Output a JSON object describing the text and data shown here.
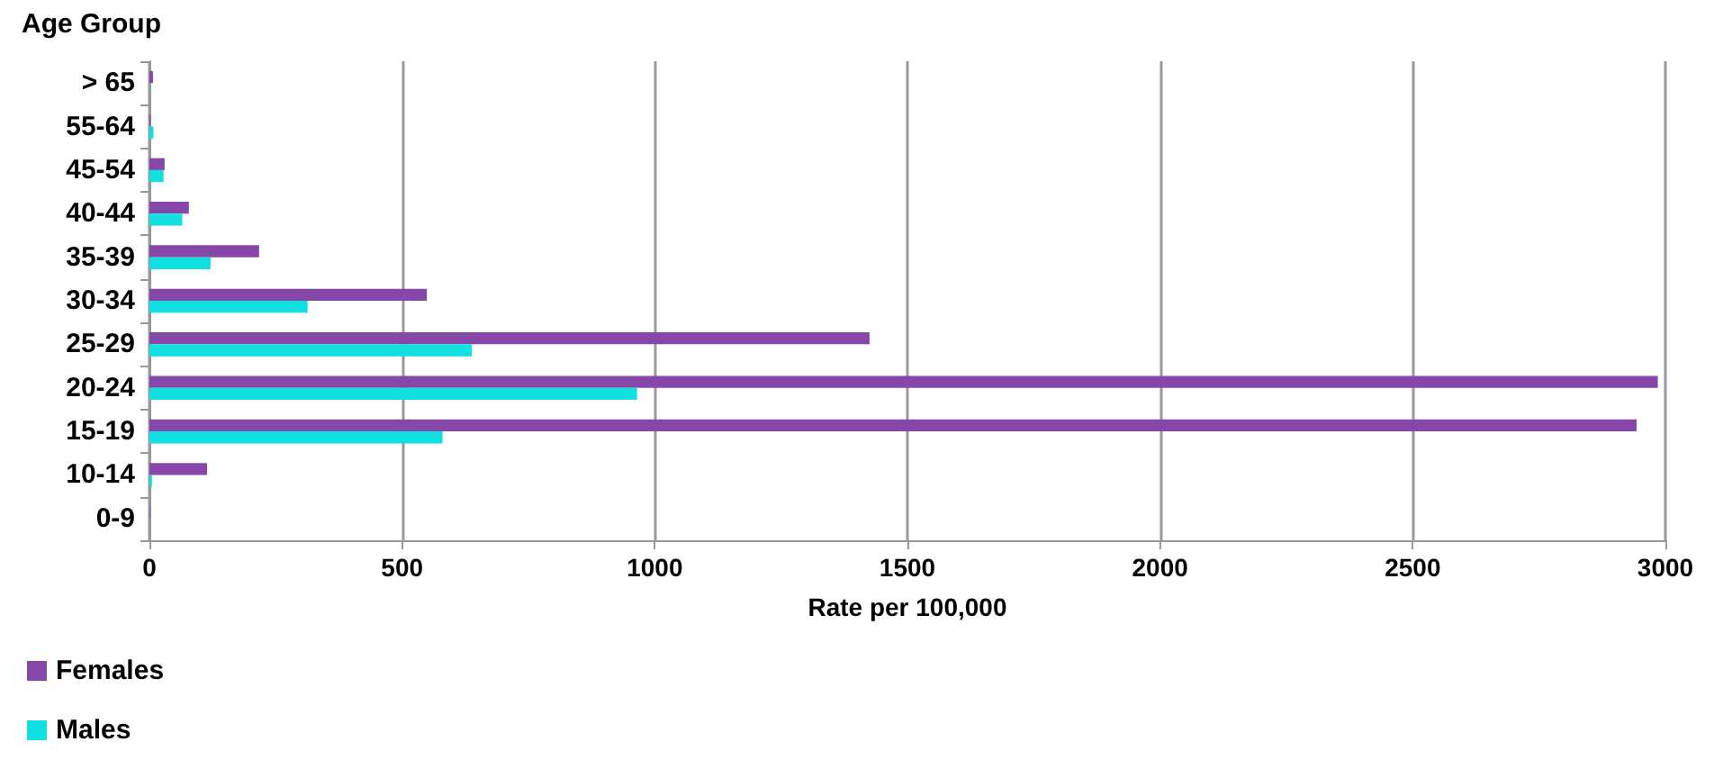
{
  "chart_data": {
    "type": "bar",
    "orientation": "horizontal",
    "ylabel": "Age Group",
    "xlabel": "Rate per 100,000",
    "categories": [
      "> 65",
      "55-64",
      "45-54",
      "40-44",
      "35-39",
      "30-34",
      "25-29",
      "20-24",
      "15-19",
      "10-14",
      "0-9"
    ],
    "series": [
      {
        "name": "Females",
        "color": "#8548a8",
        "values": [
          7,
          2,
          30,
          78,
          217,
          549,
          1425,
          2985,
          2943,
          114,
          1
        ]
      },
      {
        "name": "Males",
        "color": "#11e0e0",
        "values": [
          1,
          8,
          28,
          65,
          121,
          313,
          638,
          965,
          580,
          5,
          0
        ]
      }
    ],
    "xlim": [
      0,
      3000
    ],
    "xticks": [
      0,
      500,
      1000,
      1500,
      2000,
      2500,
      3000
    ],
    "grid": "x",
    "legend": "bottom left"
  }
}
